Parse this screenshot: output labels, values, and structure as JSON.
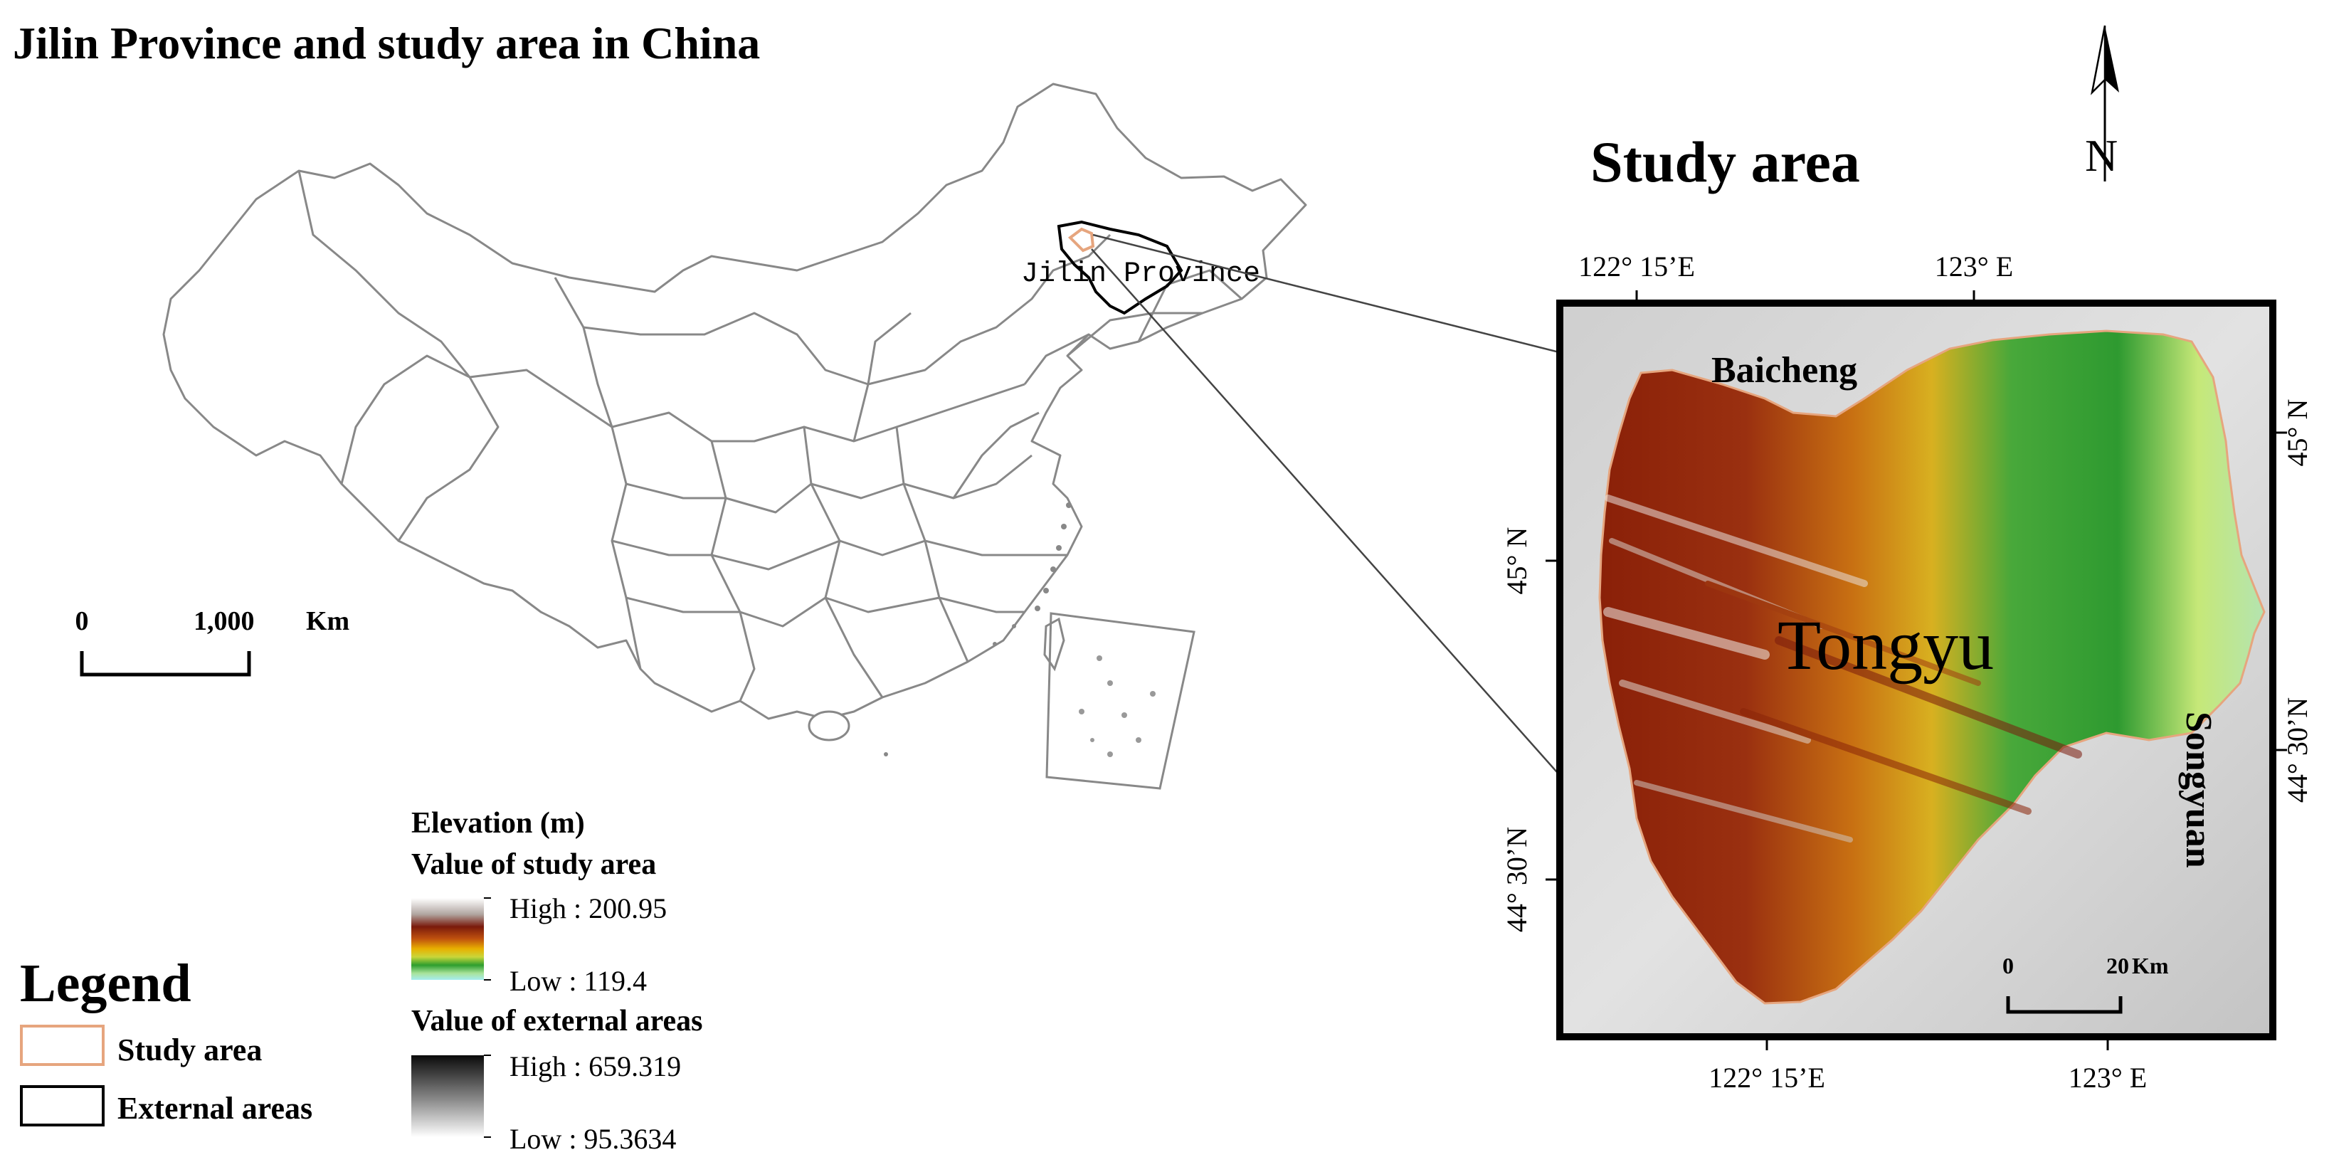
{
  "title": "Jilin Province and study area in China",
  "inset_title": "Study area",
  "north_label": "N",
  "province_label": "Jilin Province",
  "scale_main": {
    "zero": "0",
    "end": "1,000",
    "unit": "Km"
  },
  "scale_inset": {
    "zero": "0",
    "end": "20",
    "unit": "Km"
  },
  "top_ticks": [
    "122° 15’E",
    "123° E"
  ],
  "bottom_ticks": [
    "122° 15’E",
    "123° E"
  ],
  "left_ticks": [
    "45° N",
    "44° 30’N"
  ],
  "right_ticks": [
    "45° N",
    "44° 30’N"
  ],
  "places": {
    "baicheng": "Baicheng",
    "songyuan": "Songyuan",
    "tongyu": "Tongyu"
  },
  "elevation": {
    "title": "Elevation (m)",
    "study_title": "Value of study area",
    "study_high": "High : 200.95",
    "study_low": "Low : 119.4",
    "external_title": "Value of external areas",
    "external_high": "High : 659.319",
    "external_low": "Low : 95.3634"
  },
  "legend": {
    "title": "Legend",
    "items": [
      "Study area",
      "External areas"
    ],
    "study_color": "#e6a57e",
    "external_color": "#000000"
  }
}
